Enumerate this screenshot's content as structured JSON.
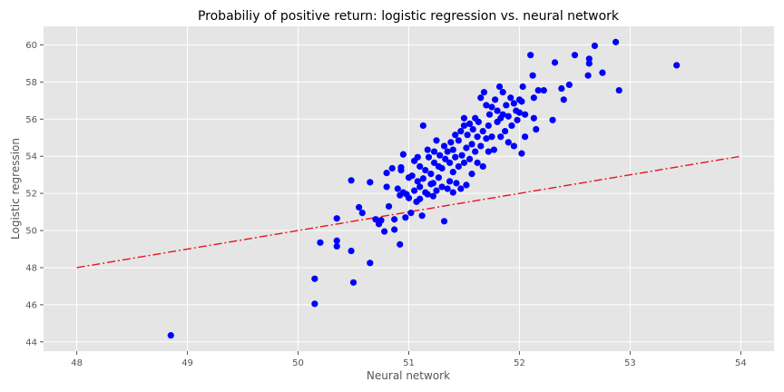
{
  "chart_data": {
    "type": "scatter",
    "title": "Probabiliy of positive return: logistic regression vs. neural network",
    "xlabel": "Neural network",
    "ylabel": "Logistic regression",
    "xlim": [
      47.7,
      54.3
    ],
    "ylim": [
      43.5,
      61.0
    ],
    "xticks": [
      48,
      49,
      50,
      51,
      52,
      53,
      54
    ],
    "yticks": [
      44,
      46,
      48,
      50,
      52,
      54,
      56,
      58,
      60
    ],
    "grid": true,
    "legend": "none",
    "series": [
      {
        "kind": "scatter",
        "color": "#0000ff",
        "points": [
          [
            48.85,
            44.35
          ],
          [
            50.15,
            46.05
          ],
          [
            50.15,
            47.4
          ],
          [
            50.5,
            47.2
          ],
          [
            50.65,
            48.25
          ],
          [
            50.2,
            49.35
          ],
          [
            50.35,
            49.15
          ],
          [
            50.35,
            49.45
          ],
          [
            50.48,
            48.9
          ],
          [
            50.35,
            50.65
          ],
          [
            50.55,
            51.25
          ],
          [
            50.58,
            50.95
          ],
          [
            50.48,
            52.7
          ],
          [
            50.65,
            52.6
          ],
          [
            50.7,
            50.6
          ],
          [
            50.73,
            50.35
          ],
          [
            50.75,
            50.55
          ],
          [
            50.78,
            49.95
          ],
          [
            50.82,
            51.3
          ],
          [
            50.8,
            52.35
          ],
          [
            50.8,
            53.1
          ],
          [
            50.85,
            53.35
          ],
          [
            50.87,
            50.05
          ],
          [
            50.87,
            50.6
          ],
          [
            50.9,
            52.25
          ],
          [
            50.92,
            49.25
          ],
          [
            50.92,
            51.9
          ],
          [
            50.93,
            53.25
          ],
          [
            50.93,
            53.4
          ],
          [
            50.95,
            54.1
          ],
          [
            50.95,
            52.05
          ],
          [
            50.97,
            50.7
          ],
          [
            50.98,
            51.95
          ],
          [
            51.0,
            52.85
          ],
          [
            51.0,
            51.75
          ],
          [
            51.02,
            50.95
          ],
          [
            51.03,
            52.95
          ],
          [
            51.05,
            52.15
          ],
          [
            51.05,
            53.75
          ],
          [
            51.07,
            51.55
          ],
          [
            51.08,
            52.65
          ],
          [
            51.08,
            53.95
          ],
          [
            51.1,
            51.7
          ],
          [
            51.1,
            52.35
          ],
          [
            51.1,
            53.45
          ],
          [
            51.12,
            50.8
          ],
          [
            51.13,
            55.65
          ],
          [
            51.13,
            52.8
          ],
          [
            51.15,
            53.25
          ],
          [
            51.15,
            52.05
          ],
          [
            51.17,
            51.95
          ],
          [
            51.17,
            54.35
          ],
          [
            51.18,
            53.95
          ],
          [
            51.2,
            52.5
          ],
          [
            51.2,
            53.05
          ],
          [
            51.22,
            51.85
          ],
          [
            51.22,
            52.55
          ],
          [
            51.23,
            53.65
          ],
          [
            51.23,
            54.25
          ],
          [
            51.25,
            52.15
          ],
          [
            51.25,
            54.85
          ],
          [
            51.27,
            53.45
          ],
          [
            51.27,
            52.85
          ],
          [
            51.28,
            54.05
          ],
          [
            51.3,
            52.35
          ],
          [
            51.3,
            53.35
          ],
          [
            51.32,
            50.5
          ],
          [
            51.32,
            54.55
          ],
          [
            51.33,
            53.85
          ],
          [
            51.35,
            52.25
          ],
          [
            51.35,
            54.25
          ],
          [
            51.37,
            52.65
          ],
          [
            51.37,
            53.65
          ],
          [
            51.38,
            54.75
          ],
          [
            51.4,
            52.05
          ],
          [
            51.4,
            53.15
          ],
          [
            51.4,
            54.35
          ],
          [
            51.42,
            53.95
          ],
          [
            51.42,
            55.15
          ],
          [
            51.43,
            52.55
          ],
          [
            51.45,
            54.85
          ],
          [
            51.45,
            53.45
          ],
          [
            51.47,
            52.25
          ],
          [
            51.47,
            55.35
          ],
          [
            51.48,
            54.05
          ],
          [
            51.5,
            53.65
          ],
          [
            51.5,
            55.65
          ],
          [
            51.5,
            56.05
          ],
          [
            51.52,
            54.45
          ],
          [
            51.52,
            52.45
          ],
          [
            51.53,
            55.15
          ],
          [
            51.55,
            53.85
          ],
          [
            51.55,
            55.75
          ],
          [
            51.57,
            54.65
          ],
          [
            51.57,
            53.05
          ],
          [
            51.58,
            55.45
          ],
          [
            51.6,
            54.25
          ],
          [
            51.6,
            56.05
          ],
          [
            51.62,
            55.05
          ],
          [
            51.62,
            53.65
          ],
          [
            51.63,
            55.85
          ],
          [
            51.65,
            54.55
          ],
          [
            51.65,
            57.15
          ],
          [
            51.67,
            55.35
          ],
          [
            51.67,
            53.45
          ],
          [
            51.68,
            57.45
          ],
          [
            51.7,
            54.95
          ],
          [
            51.7,
            56.75
          ],
          [
            51.72,
            55.65
          ],
          [
            51.72,
            54.25
          ],
          [
            51.73,
            56.25
          ],
          [
            51.75,
            55.05
          ],
          [
            51.75,
            56.65
          ],
          [
            51.77,
            54.35
          ],
          [
            51.78,
            57.05
          ],
          [
            51.8,
            55.85
          ],
          [
            51.8,
            56.45
          ],
          [
            51.82,
            57.75
          ],
          [
            51.83,
            55.05
          ],
          [
            51.83,
            56.05
          ],
          [
            51.85,
            57.45
          ],
          [
            51.85,
            56.25
          ],
          [
            51.87,
            55.35
          ],
          [
            51.88,
            56.75
          ],
          [
            51.9,
            54.75
          ],
          [
            51.9,
            56.15
          ],
          [
            51.92,
            57.15
          ],
          [
            51.93,
            55.65
          ],
          [
            51.95,
            56.85
          ],
          [
            51.95,
            54.55
          ],
          [
            51.97,
            56.45
          ],
          [
            51.98,
            55.95
          ],
          [
            52.0,
            57.05
          ],
          [
            52.0,
            56.35
          ],
          [
            52.02,
            54.15
          ],
          [
            52.02,
            56.95
          ],
          [
            52.03,
            57.75
          ],
          [
            52.05,
            55.05
          ],
          [
            52.05,
            56.25
          ],
          [
            52.1,
            59.45
          ],
          [
            52.12,
            58.35
          ],
          [
            52.13,
            57.15
          ],
          [
            52.13,
            56.05
          ],
          [
            52.15,
            55.45
          ],
          [
            52.17,
            57.55
          ],
          [
            52.22,
            57.55
          ],
          [
            52.3,
            55.95
          ],
          [
            52.32,
            59.05
          ],
          [
            52.38,
            57.65
          ],
          [
            52.4,
            57.05
          ],
          [
            52.45,
            57.85
          ],
          [
            52.5,
            59.45
          ],
          [
            52.62,
            58.35
          ],
          [
            52.63,
            59.25
          ],
          [
            52.63,
            59.0
          ],
          [
            52.68,
            59.95
          ],
          [
            52.75,
            58.5
          ],
          [
            52.87,
            60.15
          ],
          [
            52.9,
            57.55
          ],
          [
            53.42,
            58.9
          ]
        ]
      },
      {
        "kind": "line",
        "style": "dashdot",
        "color": "#e8141e",
        "points": [
          [
            48,
            48
          ],
          [
            54,
            54
          ]
        ]
      }
    ]
  }
}
